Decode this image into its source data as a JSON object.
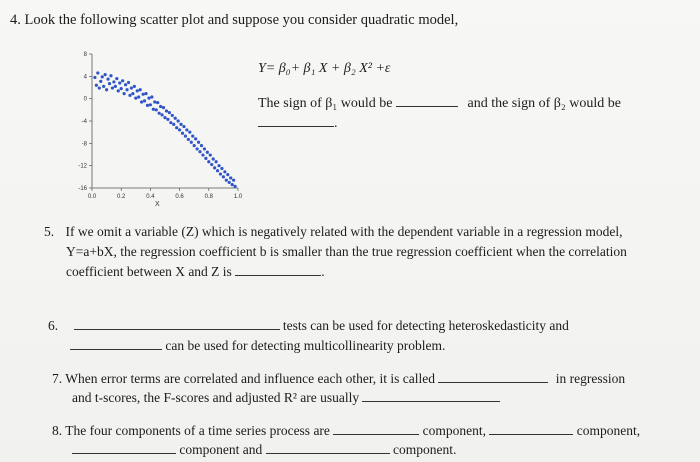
{
  "q4": {
    "number": "4.",
    "text": "Look the following scatter plot and suppose you consider quadratic model,",
    "model": "Y= β₀+ β₁ X + β₂ X² +ε",
    "sign_part1": "The sign of β₁ would be",
    "sign_part2": "and the sign of β₂ would be",
    "sign_end": "."
  },
  "chart_data": {
    "type": "scatter",
    "xlabel": "X",
    "ylabel": "",
    "x_ticks": [
      "0.0",
      "0.2",
      "0.4",
      "0.6",
      "0.8",
      "1.0"
    ],
    "y_ticks": [
      "8",
      "4",
      "0",
      "-4",
      "-8",
      "-12",
      "-16"
    ],
    "xlim": [
      0,
      1
    ],
    "ylim": [
      -16,
      8
    ],
    "trend": "decreasing, concave (curving downward)",
    "points_color": "#2f55c8",
    "points": [
      [
        0.02,
        3.8
      ],
      [
        0.03,
        2.4
      ],
      [
        0.04,
        4.6
      ],
      [
        0.05,
        1.9
      ],
      [
        0.06,
        3.1
      ],
      [
        0.07,
        3.9
      ],
      [
        0.08,
        2.2
      ],
      [
        0.09,
        4.3
      ],
      [
        0.1,
        1.6
      ],
      [
        0.11,
        3.5
      ],
      [
        0.12,
        2.7
      ],
      [
        0.13,
        4.1
      ],
      [
        0.14,
        1.9
      ],
      [
        0.15,
        3.0
      ],
      [
        0.16,
        2.2
      ],
      [
        0.17,
        3.6
      ],
      [
        0.18,
        1.4
      ],
      [
        0.19,
        2.8
      ],
      [
        0.2,
        1.8
      ],
      [
        0.21,
        3.2
      ],
      [
        0.22,
        0.9
      ],
      [
        0.23,
        2.5
      ],
      [
        0.24,
        1.6
      ],
      [
        0.25,
        2.9
      ],
      [
        0.26,
        0.6
      ],
      [
        0.27,
        1.9
      ],
      [
        0.28,
        0.9
      ],
      [
        0.29,
        2.2
      ],
      [
        0.3,
        0.1
      ],
      [
        0.31,
        1.4
      ],
      [
        0.32,
        0.3
      ],
      [
        0.33,
        1.6
      ],
      [
        0.34,
        -0.6
      ],
      [
        0.35,
        0.8
      ],
      [
        0.36,
        -0.4
      ],
      [
        0.37,
        0.9
      ],
      [
        0.38,
        -1.2
      ],
      [
        0.39,
        0.1
      ],
      [
        0.4,
        -1.1
      ],
      [
        0.41,
        0.3
      ],
      [
        0.42,
        -1.9
      ],
      [
        0.43,
        -0.6
      ],
      [
        0.44,
        -2.0
      ],
      [
        0.45,
        -0.7
      ],
      [
        0.46,
        -2.6
      ],
      [
        0.47,
        -1.4
      ],
      [
        0.48,
        -2.9
      ],
      [
        0.49,
        -1.6
      ],
      [
        0.5,
        -3.4
      ],
      [
        0.51,
        -2.2
      ],
      [
        0.52,
        -3.7
      ],
      [
        0.53,
        -2.5
      ],
      [
        0.54,
        -4.3
      ],
      [
        0.55,
        -3.0
      ],
      [
        0.56,
        -4.6
      ],
      [
        0.57,
        -3.5
      ],
      [
        0.58,
        -5.2
      ],
      [
        0.59,
        -4.0
      ],
      [
        0.6,
        -5.6
      ],
      [
        0.61,
        -4.6
      ],
      [
        0.62,
        -6.2
      ],
      [
        0.63,
        -5.0
      ],
      [
        0.64,
        -6.7
      ],
      [
        0.65,
        -5.6
      ],
      [
        0.66,
        -7.3
      ],
      [
        0.67,
        -6.0
      ],
      [
        0.68,
        -7.8
      ],
      [
        0.69,
        -6.7
      ],
      [
        0.7,
        -8.4
      ],
      [
        0.71,
        -7.2
      ],
      [
        0.72,
        -9.0
      ],
      [
        0.73,
        -7.8
      ],
      [
        0.74,
        -9.5
      ],
      [
        0.75,
        -8.4
      ],
      [
        0.76,
        -10.1
      ],
      [
        0.77,
        -9.0
      ],
      [
        0.78,
        -10.7
      ],
      [
        0.79,
        -9.6
      ],
      [
        0.8,
        -11.3
      ],
      [
        0.81,
        -10.1
      ],
      [
        0.82,
        -11.8
      ],
      [
        0.83,
        -10.8
      ],
      [
        0.84,
        -12.4
      ],
      [
        0.85,
        -11.3
      ],
      [
        0.86,
        -12.9
      ],
      [
        0.87,
        -12.0
      ],
      [
        0.88,
        -13.5
      ],
      [
        0.89,
        -12.5
      ],
      [
        0.9,
        -14.0
      ],
      [
        0.91,
        -13.1
      ],
      [
        0.92,
        -14.6
      ],
      [
        0.93,
        -13.6
      ],
      [
        0.94,
        -15.0
      ],
      [
        0.95,
        -14.2
      ],
      [
        0.96,
        -15.4
      ],
      [
        0.97,
        -14.6
      ],
      [
        0.98,
        -15.7
      ]
    ]
  },
  "q5": {
    "number": "5.",
    "line1": "If we omit a variable (Z) which is negatively related with the dependent variable in a regression model,",
    "line2": "Y=a+bX,  the regression coefficient b is smaller than the true regression coefficient when the correlation",
    "line3": "coefficient between X and Z is",
    "end": "."
  },
  "q6": {
    "number": "6.",
    "line1": "tests can be used for detecting heteroskedasticity and",
    "line2": "can be used for detecting multicollinearity problem."
  },
  "q7": {
    "number": "7.",
    "line1": "When error terms are correlated and influence each other, it is called",
    "line1_end": "in regression",
    "line2": "and t-scores, the F-scores and adjusted R² are usually"
  },
  "q8": {
    "number": "8.",
    "line1": "The four components of a time series process are",
    "comp1": "component,",
    "comp2": "component,",
    "comp3": "component and",
    "comp4": "component."
  }
}
